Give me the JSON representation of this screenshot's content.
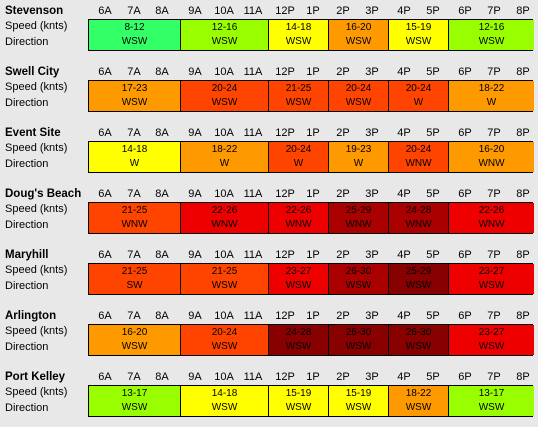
{
  "hours": [
    "6A",
    "7A",
    "8A",
    "9A",
    "10A",
    "11A",
    "12P",
    "1P",
    "2P",
    "3P",
    "4P",
    "5P",
    "6P",
    "7P",
    "8P"
  ],
  "labels": {
    "speed": "Speed (knts)",
    "direction": "Direction"
  },
  "colors": {
    "lime": "#33ff66",
    "yellowgreen": "#99ff00",
    "yellow": "#ffff00",
    "orange": "#ff9900",
    "redorange": "#ff4400",
    "red": "#ee0000",
    "darkred": "#aa0000",
    "maroon": "#880000"
  },
  "stations": [
    {
      "name": "Stevenson",
      "cells": [
        {
          "speed": "8-12",
          "dir": "WSW",
          "color": "lime"
        },
        {
          "speed": "12-16",
          "dir": "WSW",
          "color": "yellowgreen"
        },
        {
          "speed": "14-18",
          "dir": "WSW",
          "color": "yellow"
        },
        {
          "speed": "16-20",
          "dir": "WSW",
          "color": "orange"
        },
        {
          "speed": "15-19",
          "dir": "WSW",
          "color": "yellow"
        },
        {
          "speed": "12-16",
          "dir": "WSW",
          "color": "yellowgreen"
        }
      ]
    },
    {
      "name": "Swell City",
      "cells": [
        {
          "speed": "17-23",
          "dir": "WSW",
          "color": "orange"
        },
        {
          "speed": "20-24",
          "dir": "WSW",
          "color": "redorange"
        },
        {
          "speed": "21-25",
          "dir": "WSW",
          "color": "redorange"
        },
        {
          "speed": "20-24",
          "dir": "WSW",
          "color": "redorange"
        },
        {
          "speed": "20-24",
          "dir": "W",
          "color": "redorange"
        },
        {
          "speed": "18-22",
          "dir": "W",
          "color": "orange"
        }
      ]
    },
    {
      "name": "Event Site",
      "cells": [
        {
          "speed": "14-18",
          "dir": "W",
          "color": "yellow"
        },
        {
          "speed": "18-22",
          "dir": "W",
          "color": "orange"
        },
        {
          "speed": "20-24",
          "dir": "W",
          "color": "redorange"
        },
        {
          "speed": "19-23",
          "dir": "W",
          "color": "orange"
        },
        {
          "speed": "20-24",
          "dir": "WNW",
          "color": "redorange"
        },
        {
          "speed": "16-20",
          "dir": "WNW",
          "color": "orange"
        }
      ]
    },
    {
      "name": "Doug's Beach",
      "cells": [
        {
          "speed": "21-25",
          "dir": "WNW",
          "color": "redorange"
        },
        {
          "speed": "22-26",
          "dir": "WNW",
          "color": "red"
        },
        {
          "speed": "22-26",
          "dir": "WNW",
          "color": "red"
        },
        {
          "speed": "25-29",
          "dir": "WNW",
          "color": "darkred"
        },
        {
          "speed": "24-28",
          "dir": "WNW",
          "color": "darkred"
        },
        {
          "speed": "22-26",
          "dir": "WNW",
          "color": "red"
        }
      ]
    },
    {
      "name": "Maryhill",
      "cells": [
        {
          "speed": "21-25",
          "dir": "SW",
          "color": "redorange"
        },
        {
          "speed": "21-25",
          "dir": "WSW",
          "color": "redorange"
        },
        {
          "speed": "23-27",
          "dir": "WSW",
          "color": "red"
        },
        {
          "speed": "26-30",
          "dir": "WSW",
          "color": "darkred"
        },
        {
          "speed": "25-29",
          "dir": "WSW",
          "color": "maroon"
        },
        {
          "speed": "23-27",
          "dir": "WSW",
          "color": "red"
        }
      ]
    },
    {
      "name": "Arlington",
      "cells": [
        {
          "speed": "16-20",
          "dir": "WSW",
          "color": "orange"
        },
        {
          "speed": "20-24",
          "dir": "WSW",
          "color": "redorange"
        },
        {
          "speed": "24-28",
          "dir": "WSW",
          "color": "maroon"
        },
        {
          "speed": "26-30",
          "dir": "WSW",
          "color": "maroon"
        },
        {
          "speed": "26-30",
          "dir": "WSW",
          "color": "maroon"
        },
        {
          "speed": "23-27",
          "dir": "WSW",
          "color": "red"
        }
      ]
    },
    {
      "name": "Port Kelley",
      "cells": [
        {
          "speed": "13-17",
          "dir": "WSW",
          "color": "yellowgreen"
        },
        {
          "speed": "14-18",
          "dir": "WSW",
          "color": "yellow"
        },
        {
          "speed": "15-19",
          "dir": "WSW",
          "color": "yellow"
        },
        {
          "speed": "15-19",
          "dir": "WSW",
          "color": "yellow"
        },
        {
          "speed": "18-22",
          "dir": "WSW",
          "color": "orange"
        },
        {
          "speed": "13-17",
          "dir": "WSW",
          "color": "yellowgreen"
        }
      ]
    }
  ]
}
